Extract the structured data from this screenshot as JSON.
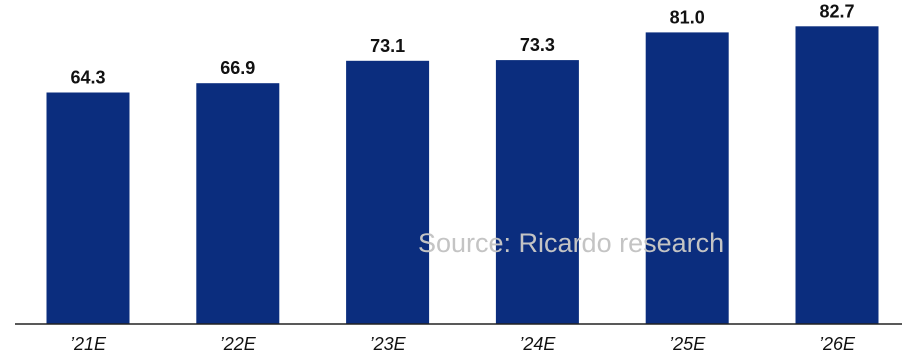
{
  "chart_data": {
    "type": "bar",
    "categories": [
      "’21E",
      "’22E",
      "’23E",
      "’24E",
      "’25E",
      "’26E"
    ],
    "values": [
      64.3,
      66.9,
      73.1,
      73.3,
      81.0,
      82.7
    ],
    "value_labels": [
      "64.3",
      "66.9",
      "73.1",
      "73.3",
      "81.0",
      "82.7"
    ],
    "bar_color": "#0b2d7e",
    "ylim": [
      0,
      90
    ],
    "grid": false,
    "legend": "none"
  },
  "watermark": {
    "text": "Source: Ricardo research"
  }
}
